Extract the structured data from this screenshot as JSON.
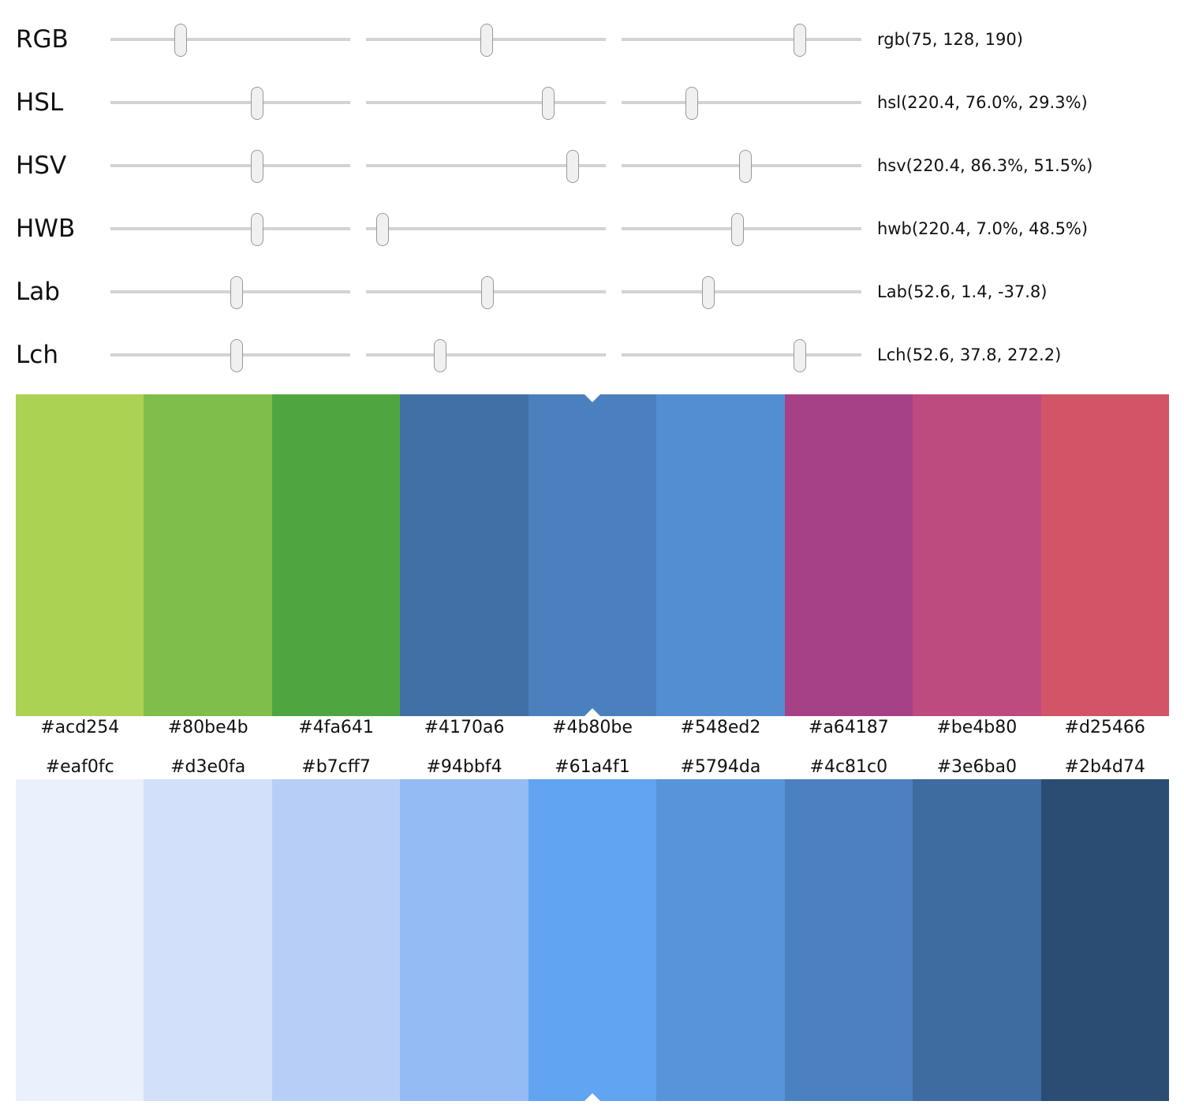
{
  "color_models": [
    {
      "name": "RGB",
      "value_text": "rgb(75, 128, 190)",
      "slider_fractions": [
        0.294,
        0.502,
        0.745
      ]
    },
    {
      "name": "HSL",
      "value_text": "hsl(220.4, 76.0%, 29.3%)",
      "slider_fractions": [
        0.612,
        0.76,
        0.293
      ]
    },
    {
      "name": "HSV",
      "value_text": "hsv(220.4, 86.3%, 51.5%)",
      "slider_fractions": [
        0.612,
        0.863,
        0.515
      ]
    },
    {
      "name": "HWB",
      "value_text": "hwb(220.4, 7.0%, 48.5%)",
      "slider_fractions": [
        0.612,
        0.07,
        0.485
      ]
    },
    {
      "name": "Lab",
      "value_text": "Lab(52.6, 1.4, -37.8)",
      "slider_fractions": [
        0.526,
        0.507,
        0.362
      ]
    },
    {
      "name": "Lch",
      "value_text": "Lch(52.6, 37.8, 272.2)",
      "slider_fractions": [
        0.526,
        0.309,
        0.745
      ]
    }
  ],
  "selected_index": 4,
  "hue_palette": [
    "#acd254",
    "#80be4b",
    "#4fa641",
    "#4170a6",
    "#4b80be",
    "#548ed2",
    "#a64187",
    "#be4b80",
    "#d25466"
  ],
  "shade_palette": [
    "#eaf0fc",
    "#d3e0fa",
    "#b7cff7",
    "#94bbf4",
    "#61a4f1",
    "#5794da",
    "#4c81c0",
    "#3e6ba0",
    "#2b4d74"
  ]
}
